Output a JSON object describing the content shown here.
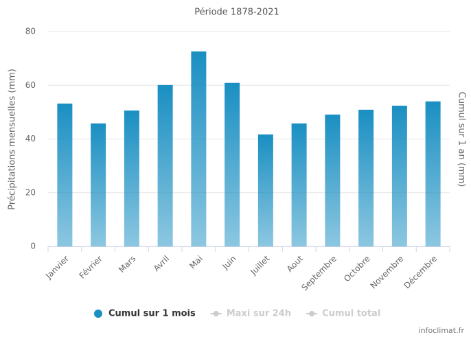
{
  "chart_data": {
    "type": "bar",
    "title": "Période 1878-2021",
    "y_label": "Précipitations mensuelles (mm)",
    "y2_label": "Cumul sur 1 an (mm)",
    "categories": [
      "Janvier",
      "Février",
      "Mars",
      "Avril",
      "Mai",
      "Juin",
      "Juillet",
      "Aout",
      "Septembre",
      "Octobre",
      "Novembre",
      "Décembre"
    ],
    "series": [
      {
        "name": "Cumul sur 1 mois",
        "color": "#1a8fc2",
        "values": [
          53.2,
          45.8,
          50.6,
          60.1,
          72.6,
          60.9,
          41.7,
          45.8,
          49.1,
          50.9,
          52.4,
          54.0
        ]
      }
    ],
    "hidden_series": [
      {
        "name": "Maxi sur 24h"
      },
      {
        "name": "Cumul total"
      }
    ],
    "ylim": [
      0,
      80
    ],
    "yticks": [
      0,
      20,
      40,
      60,
      80
    ],
    "grid": true,
    "credit": "infoclimat.fr"
  }
}
